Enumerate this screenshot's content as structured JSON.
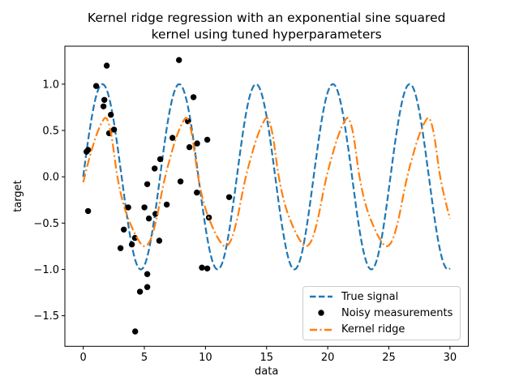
{
  "figure": {
    "title_line1": "Kernel ridge regression with an exponential sine squared",
    "title_line2": "kernel using tuned hyperparameters",
    "xlabel": "data",
    "ylabel": "target"
  },
  "legend": {
    "position": "lower right",
    "items": [
      {
        "label": "True signal",
        "marker": "dashed-line",
        "color": "#1f77b4"
      },
      {
        "label": "Noisy measurements",
        "marker": "dot",
        "color": "#000000"
      },
      {
        "label": "Kernel ridge",
        "marker": "dashdot-line",
        "color": "#ff7f0e"
      }
    ]
  },
  "chart_data": {
    "type": "line",
    "title": "Kernel ridge regression with an exponential sine squared kernel using tuned hyperparameters",
    "xlabel": "data",
    "ylabel": "target",
    "xlim": [
      -1.5,
      31.5
    ],
    "ylim": [
      -1.83,
      1.41
    ],
    "grid": false,
    "legend_position": "lower right",
    "xticks": [
      {
        "v": 0,
        "label": "0"
      },
      {
        "v": 5,
        "label": "5"
      },
      {
        "v": 10,
        "label": "10"
      },
      {
        "v": 15,
        "label": "15"
      },
      {
        "v": 20,
        "label": "20"
      },
      {
        "v": 25,
        "label": "25"
      },
      {
        "v": 30,
        "label": "30"
      }
    ],
    "yticks": [
      {
        "v": 1.0,
        "label": "1.0"
      },
      {
        "v": 0.5,
        "label": "0.5"
      },
      {
        "v": 0.0,
        "label": "0.0"
      },
      {
        "v": -0.5,
        "label": "−0.5"
      },
      {
        "v": -1.0,
        "label": "−1.0"
      },
      {
        "v": -1.5,
        "label": "−1.5"
      }
    ],
    "series": [
      {
        "name": "True signal",
        "type": "line",
        "linestyle": "dashed",
        "color": "#1f77b4",
        "linewidth": 2.2,
        "formula": "sin(x)",
        "x_min": 0,
        "x_max": 30
      },
      {
        "name": "Noisy measurements",
        "type": "scatter",
        "color": "#000000",
        "marker": "circle",
        "marker_radius_px": 3.7,
        "points": [
          [
            0.27,
            0.27
          ],
          [
            0.4,
            0.29
          ],
          [
            0.4,
            -0.37
          ],
          [
            1.06,
            0.98
          ],
          [
            1.66,
            0.76
          ],
          [
            1.73,
            0.83
          ],
          [
            1.92,
            1.2
          ],
          [
            2.12,
            0.47
          ],
          [
            2.26,
            0.67
          ],
          [
            2.52,
            0.51
          ],
          [
            3.05,
            -0.77
          ],
          [
            3.32,
            -0.57
          ],
          [
            3.68,
            -0.33
          ],
          [
            3.98,
            -0.73
          ],
          [
            4.23,
            -0.66
          ],
          [
            4.25,
            -1.67
          ],
          [
            4.64,
            -1.24
          ],
          [
            5.01,
            -0.33
          ],
          [
            5.24,
            -0.08
          ],
          [
            5.24,
            -1.05
          ],
          [
            5.24,
            -1.19
          ],
          [
            5.37,
            -0.45
          ],
          [
            5.84,
            0.09
          ],
          [
            5.91,
            -0.4
          ],
          [
            6.22,
            -0.69
          ],
          [
            6.3,
            0.19
          ],
          [
            6.83,
            -0.3
          ],
          [
            7.3,
            0.42
          ],
          [
            7.83,
            1.26
          ],
          [
            7.96,
            -0.05
          ],
          [
            8.56,
            0.6
          ],
          [
            8.69,
            0.32
          ],
          [
            9.02,
            0.86
          ],
          [
            9.29,
            -0.17
          ],
          [
            9.32,
            0.36
          ],
          [
            9.71,
            -0.98
          ],
          [
            10.15,
            0.4
          ],
          [
            10.15,
            -0.99
          ],
          [
            10.28,
            -0.44
          ],
          [
            11.94,
            -0.22
          ]
        ]
      },
      {
        "name": "Kernel ridge",
        "type": "line",
        "linestyle": "dashdot",
        "color": "#ff7f0e",
        "linewidth": 2.2,
        "points": [
          [
            0.0,
            -0.06
          ],
          [
            0.5,
            0.2
          ],
          [
            1.0,
            0.42
          ],
          [
            1.5,
            0.58
          ],
          [
            1.9,
            0.63
          ],
          [
            2.3,
            0.45
          ],
          [
            2.8,
            0.0
          ],
          [
            3.3,
            -0.3
          ],
          [
            3.9,
            -0.52
          ],
          [
            4.5,
            -0.68
          ],
          [
            5.0,
            -0.75
          ],
          [
            5.5,
            -0.68
          ],
          [
            6.0,
            -0.45
          ],
          [
            6.6,
            -0.06
          ],
          [
            7.1,
            0.2
          ],
          [
            7.6,
            0.42
          ],
          [
            8.1,
            0.58
          ],
          [
            8.5,
            0.63
          ],
          [
            8.9,
            0.45
          ],
          [
            9.4,
            0.0
          ],
          [
            9.9,
            -0.3
          ],
          [
            10.5,
            -0.52
          ],
          [
            11.1,
            -0.68
          ],
          [
            11.6,
            -0.75
          ],
          [
            12.1,
            -0.68
          ],
          [
            12.6,
            -0.45
          ],
          [
            13.2,
            -0.06
          ],
          [
            13.7,
            0.2
          ],
          [
            14.2,
            0.42
          ],
          [
            14.7,
            0.58
          ],
          [
            15.1,
            0.63
          ],
          [
            15.5,
            0.45
          ],
          [
            16.0,
            0.0
          ],
          [
            16.5,
            -0.3
          ],
          [
            17.1,
            -0.52
          ],
          [
            17.7,
            -0.68
          ],
          [
            18.2,
            -0.75
          ],
          [
            18.7,
            -0.68
          ],
          [
            19.2,
            -0.45
          ],
          [
            19.8,
            -0.06
          ],
          [
            20.3,
            0.2
          ],
          [
            20.8,
            0.42
          ],
          [
            21.3,
            0.58
          ],
          [
            21.7,
            0.63
          ],
          [
            22.1,
            0.45
          ],
          [
            22.6,
            0.0
          ],
          [
            23.1,
            -0.3
          ],
          [
            23.7,
            -0.52
          ],
          [
            24.3,
            -0.68
          ],
          [
            24.8,
            -0.75
          ],
          [
            25.3,
            -0.68
          ],
          [
            25.8,
            -0.45
          ],
          [
            26.4,
            -0.06
          ],
          [
            26.9,
            0.2
          ],
          [
            27.4,
            0.42
          ],
          [
            27.9,
            0.58
          ],
          [
            28.3,
            0.63
          ],
          [
            28.7,
            0.45
          ],
          [
            29.2,
            0.0
          ],
          [
            29.7,
            -0.3
          ],
          [
            30.0,
            -0.45
          ]
        ]
      }
    ]
  }
}
